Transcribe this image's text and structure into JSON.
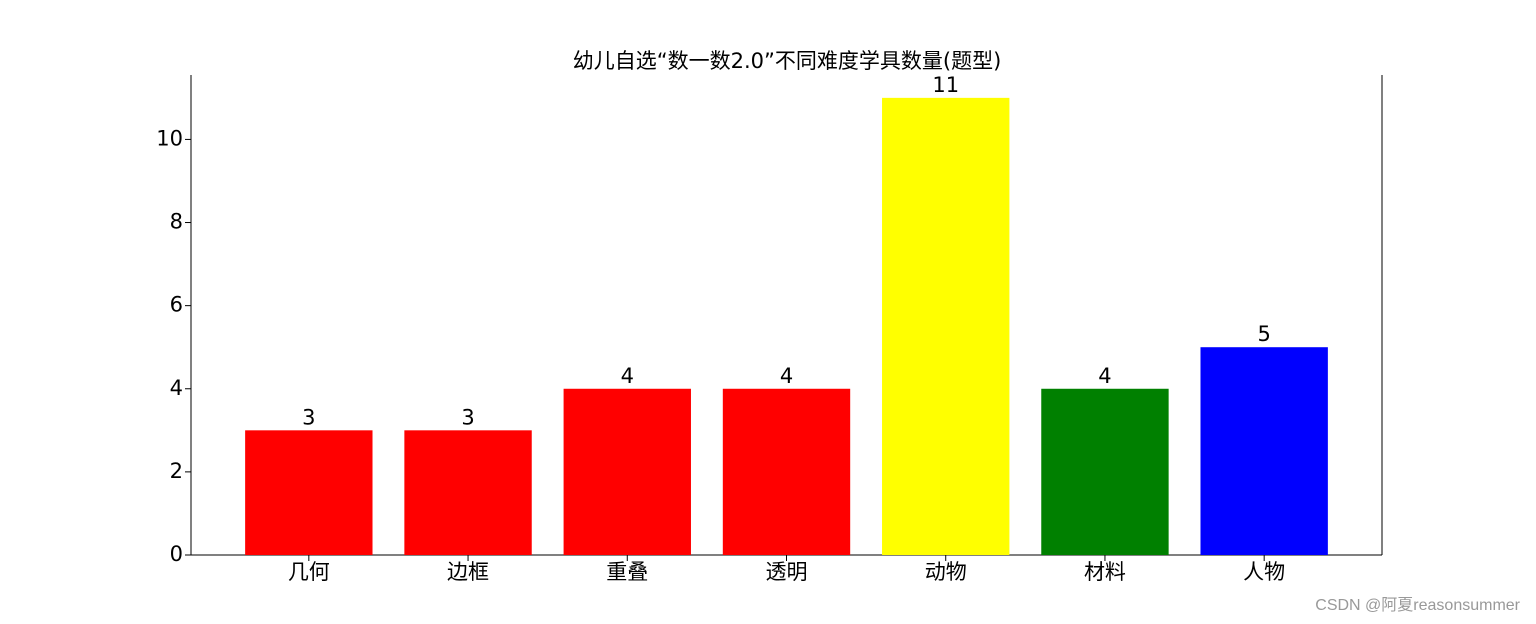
{
  "chart_data": {
    "type": "bar",
    "title": "幼儿自选“数一数2.0”不同难度学具数量(题型)",
    "categories": [
      "几何",
      "边框",
      "重叠",
      "透明",
      "动物",
      "材料",
      "人物"
    ],
    "values": [
      3,
      3,
      4,
      4,
      11,
      4,
      5
    ],
    "colors": [
      "#ff0000",
      "#ff0000",
      "#ff0000",
      "#ff0000",
      "#ffff00",
      "#008000",
      "#0000ff"
    ],
    "ylim": [
      0,
      11.55
    ],
    "yticks": [
      0,
      2,
      4,
      6,
      8,
      10
    ],
    "grid": false
  },
  "watermark": "CSDN @阿夏reasonsummer"
}
